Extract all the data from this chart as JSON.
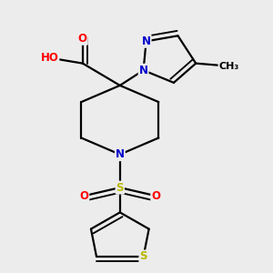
{
  "bg_color": "#ececec",
  "bond_color": "#000000",
  "bond_width": 1.6,
  "dbo": 0.018,
  "atom_colors": {
    "O": "#ff0000",
    "N": "#0000cd",
    "S": "#b8b800",
    "C": "#000000",
    "H": "#708090"
  },
  "font_size": 8.5
}
